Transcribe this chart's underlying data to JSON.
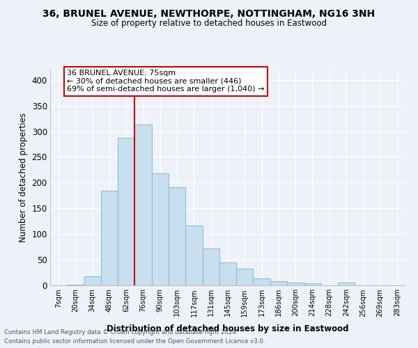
{
  "title": "36, BRUNEL AVENUE, NEWTHORPE, NOTTINGHAM, NG16 3NH",
  "subtitle": "Size of property relative to detached houses in Eastwood",
  "xlabel": "Distribution of detached houses by size in Eastwood",
  "ylabel": "Number of detached properties",
  "bar_color": "#c8dff0",
  "bar_edgecolor": "#8fbcd4",
  "background_color": "#eef2f8",
  "grid_color": "#ffffff",
  "annotation_box_edgecolor": "#cc0000",
  "vline_color": "#cc0000",
  "annotation_line1": "36 BRUNEL AVENUE: 75sqm",
  "annotation_line2": "← 30% of detached houses are smaller (446)",
  "annotation_line3": "69% of semi-detached houses are larger (1,040) →",
  "bin_labels": [
    "7sqm",
    "20sqm",
    "34sqm",
    "48sqm",
    "62sqm",
    "76sqm",
    "90sqm",
    "103sqm",
    "117sqm",
    "131sqm",
    "145sqm",
    "159sqm",
    "173sqm",
    "186sqm",
    "200sqm",
    "214sqm",
    "228sqm",
    "242sqm",
    "256sqm",
    "269sqm",
    "283sqm"
  ],
  "bin_heights": [
    0,
    2,
    17,
    184,
    287,
    313,
    218,
    191,
    116,
    72,
    45,
    33,
    13,
    8,
    6,
    4,
    0,
    5,
    0,
    0,
    0
  ],
  "vline_x_index": 5,
  "ylim": [
    0,
    420
  ],
  "yticks": [
    0,
    50,
    100,
    150,
    200,
    250,
    300,
    350,
    400
  ],
  "footer_line1": "Contains HM Land Registry data © Crown copyright and database right 2024.",
  "footer_line2": "Contains public sector information licensed under the Open Government Licence v3.0."
}
